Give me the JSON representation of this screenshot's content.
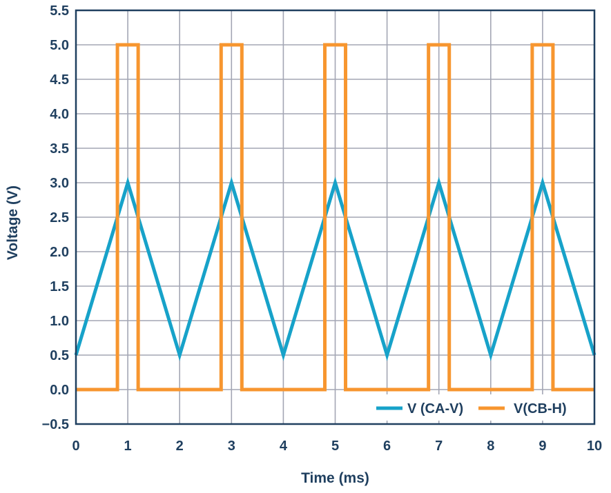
{
  "chart_data": {
    "type": "line",
    "xlabel": "Time (ms)",
    "ylabel": "Voltage (V)",
    "xlim": [
      0,
      10
    ],
    "ylim": [
      -0.5,
      5.5
    ],
    "x_ticks": [
      "0",
      "1",
      "2",
      "3",
      "4",
      "5",
      "6",
      "7",
      "8",
      "9",
      "10"
    ],
    "y_ticks": [
      "5.5",
      "5.0",
      "4.5",
      "4.0",
      "3.5",
      "3.0",
      "2.5",
      "2.0",
      "1.5",
      "1.0",
      "0.5",
      "0.0",
      "−0.5"
    ],
    "x_tick_values": [
      0,
      1,
      2,
      3,
      4,
      5,
      6,
      7,
      8,
      9,
      10
    ],
    "y_tick_values": [
      5.5,
      5.0,
      4.5,
      4.0,
      3.5,
      3.0,
      2.5,
      2.0,
      1.5,
      1.0,
      0.5,
      0.0,
      -0.5
    ],
    "grid": true,
    "legend_position": "bottom-right",
    "series": [
      {
        "name": "V (CA-V)",
        "color": "#17a2c9",
        "x": [
          0,
          1,
          2,
          3,
          4,
          5,
          6,
          7,
          8,
          9,
          10
        ],
        "y": [
          0.5,
          3.0,
          0.5,
          3.0,
          0.5,
          3.0,
          0.5,
          3.0,
          0.5,
          3.0,
          0.5
        ]
      },
      {
        "name": "V(CB-H)",
        "color": "#f7962f",
        "x": [
          0,
          0.8,
          0.8,
          1.2,
          1.2,
          2.8,
          2.8,
          3.2,
          3.2,
          4.8,
          4.8,
          5.2,
          5.2,
          6.8,
          6.8,
          7.2,
          7.2,
          8.8,
          8.8,
          9.2,
          9.2,
          10
        ],
        "y": [
          0,
          0,
          5,
          5,
          0,
          0,
          5,
          5,
          0,
          0,
          5,
          5,
          0,
          0,
          5,
          5,
          0,
          0,
          5,
          5,
          0,
          0
        ]
      }
    ]
  }
}
